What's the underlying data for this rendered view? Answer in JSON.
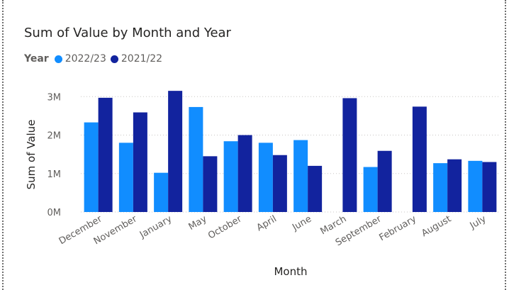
{
  "chart_data": {
    "type": "bar",
    "title": "Sum of Value by Month and Year",
    "legend_title": "Year",
    "xlabel": "Month",
    "ylabel": "Sum of Value",
    "categories": [
      "December",
      "November",
      "January",
      "May",
      "October",
      "April",
      "June",
      "March",
      "September",
      "February",
      "August",
      "July"
    ],
    "series": [
      {
        "name": "2022/23",
        "color": "#118dff",
        "values": [
          2330000,
          1800000,
          1020000,
          2730000,
          1840000,
          1800000,
          1870000,
          null,
          1170000,
          null,
          1270000,
          1330000
        ]
      },
      {
        "name": "2021/22",
        "color": "#12239e",
        "values": [
          2970000,
          2590000,
          3150000,
          1450000,
          2000000,
          1480000,
          1200000,
          2960000,
          1590000,
          2740000,
          1370000,
          1300000
        ]
      }
    ],
    "y_ticks": [
      {
        "value": 0,
        "label": "0M"
      },
      {
        "value": 1000000,
        "label": "1M"
      },
      {
        "value": 2000000,
        "label": "2M"
      },
      {
        "value": 3000000,
        "label": "3M"
      }
    ],
    "ylim": [
      0,
      3300000
    ],
    "grid": true,
    "legend_position": "top-left"
  }
}
